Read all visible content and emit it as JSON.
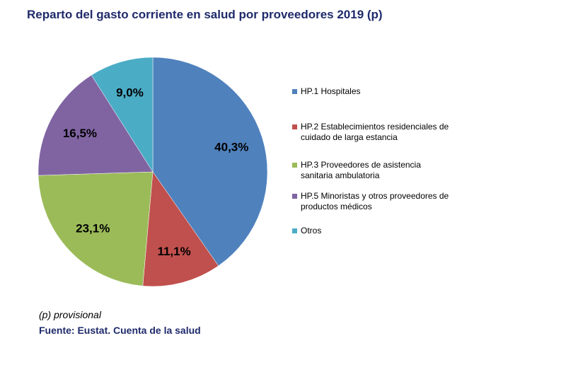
{
  "chart_data": {
    "type": "pie",
    "title": "Reparto del gasto corriente en salud por proveedores 2019 (p)",
    "slices": [
      {
        "label": "HP.1  Hospitales",
        "value": 40.3,
        "display": "40,3%",
        "color": "#4f81bd"
      },
      {
        "label": "HP.2 Establecimientos residenciales de cuidado de larga estancia",
        "value": 11.1,
        "display": "11,1%",
        "color": "#c0504d"
      },
      {
        "label": "HP.3 Proveedores de asistencia sanitaria ambulatoria",
        "value": 23.1,
        "display": "23,1%",
        "color": "#9bbb59"
      },
      {
        "label": "HP.5 Minoristas y otros proveedores de productos médicos",
        "value": 16.5,
        "display": "16,5%",
        "color": "#8064a2"
      },
      {
        "label": "Otros",
        "value": 9.0,
        "display": "9,0%",
        "color": "#4bacc6"
      }
    ],
    "legend_position": "right"
  },
  "footer": {
    "note": "(p) provisional",
    "source": "Fuente: Eustat. Cuenta de la salud"
  }
}
